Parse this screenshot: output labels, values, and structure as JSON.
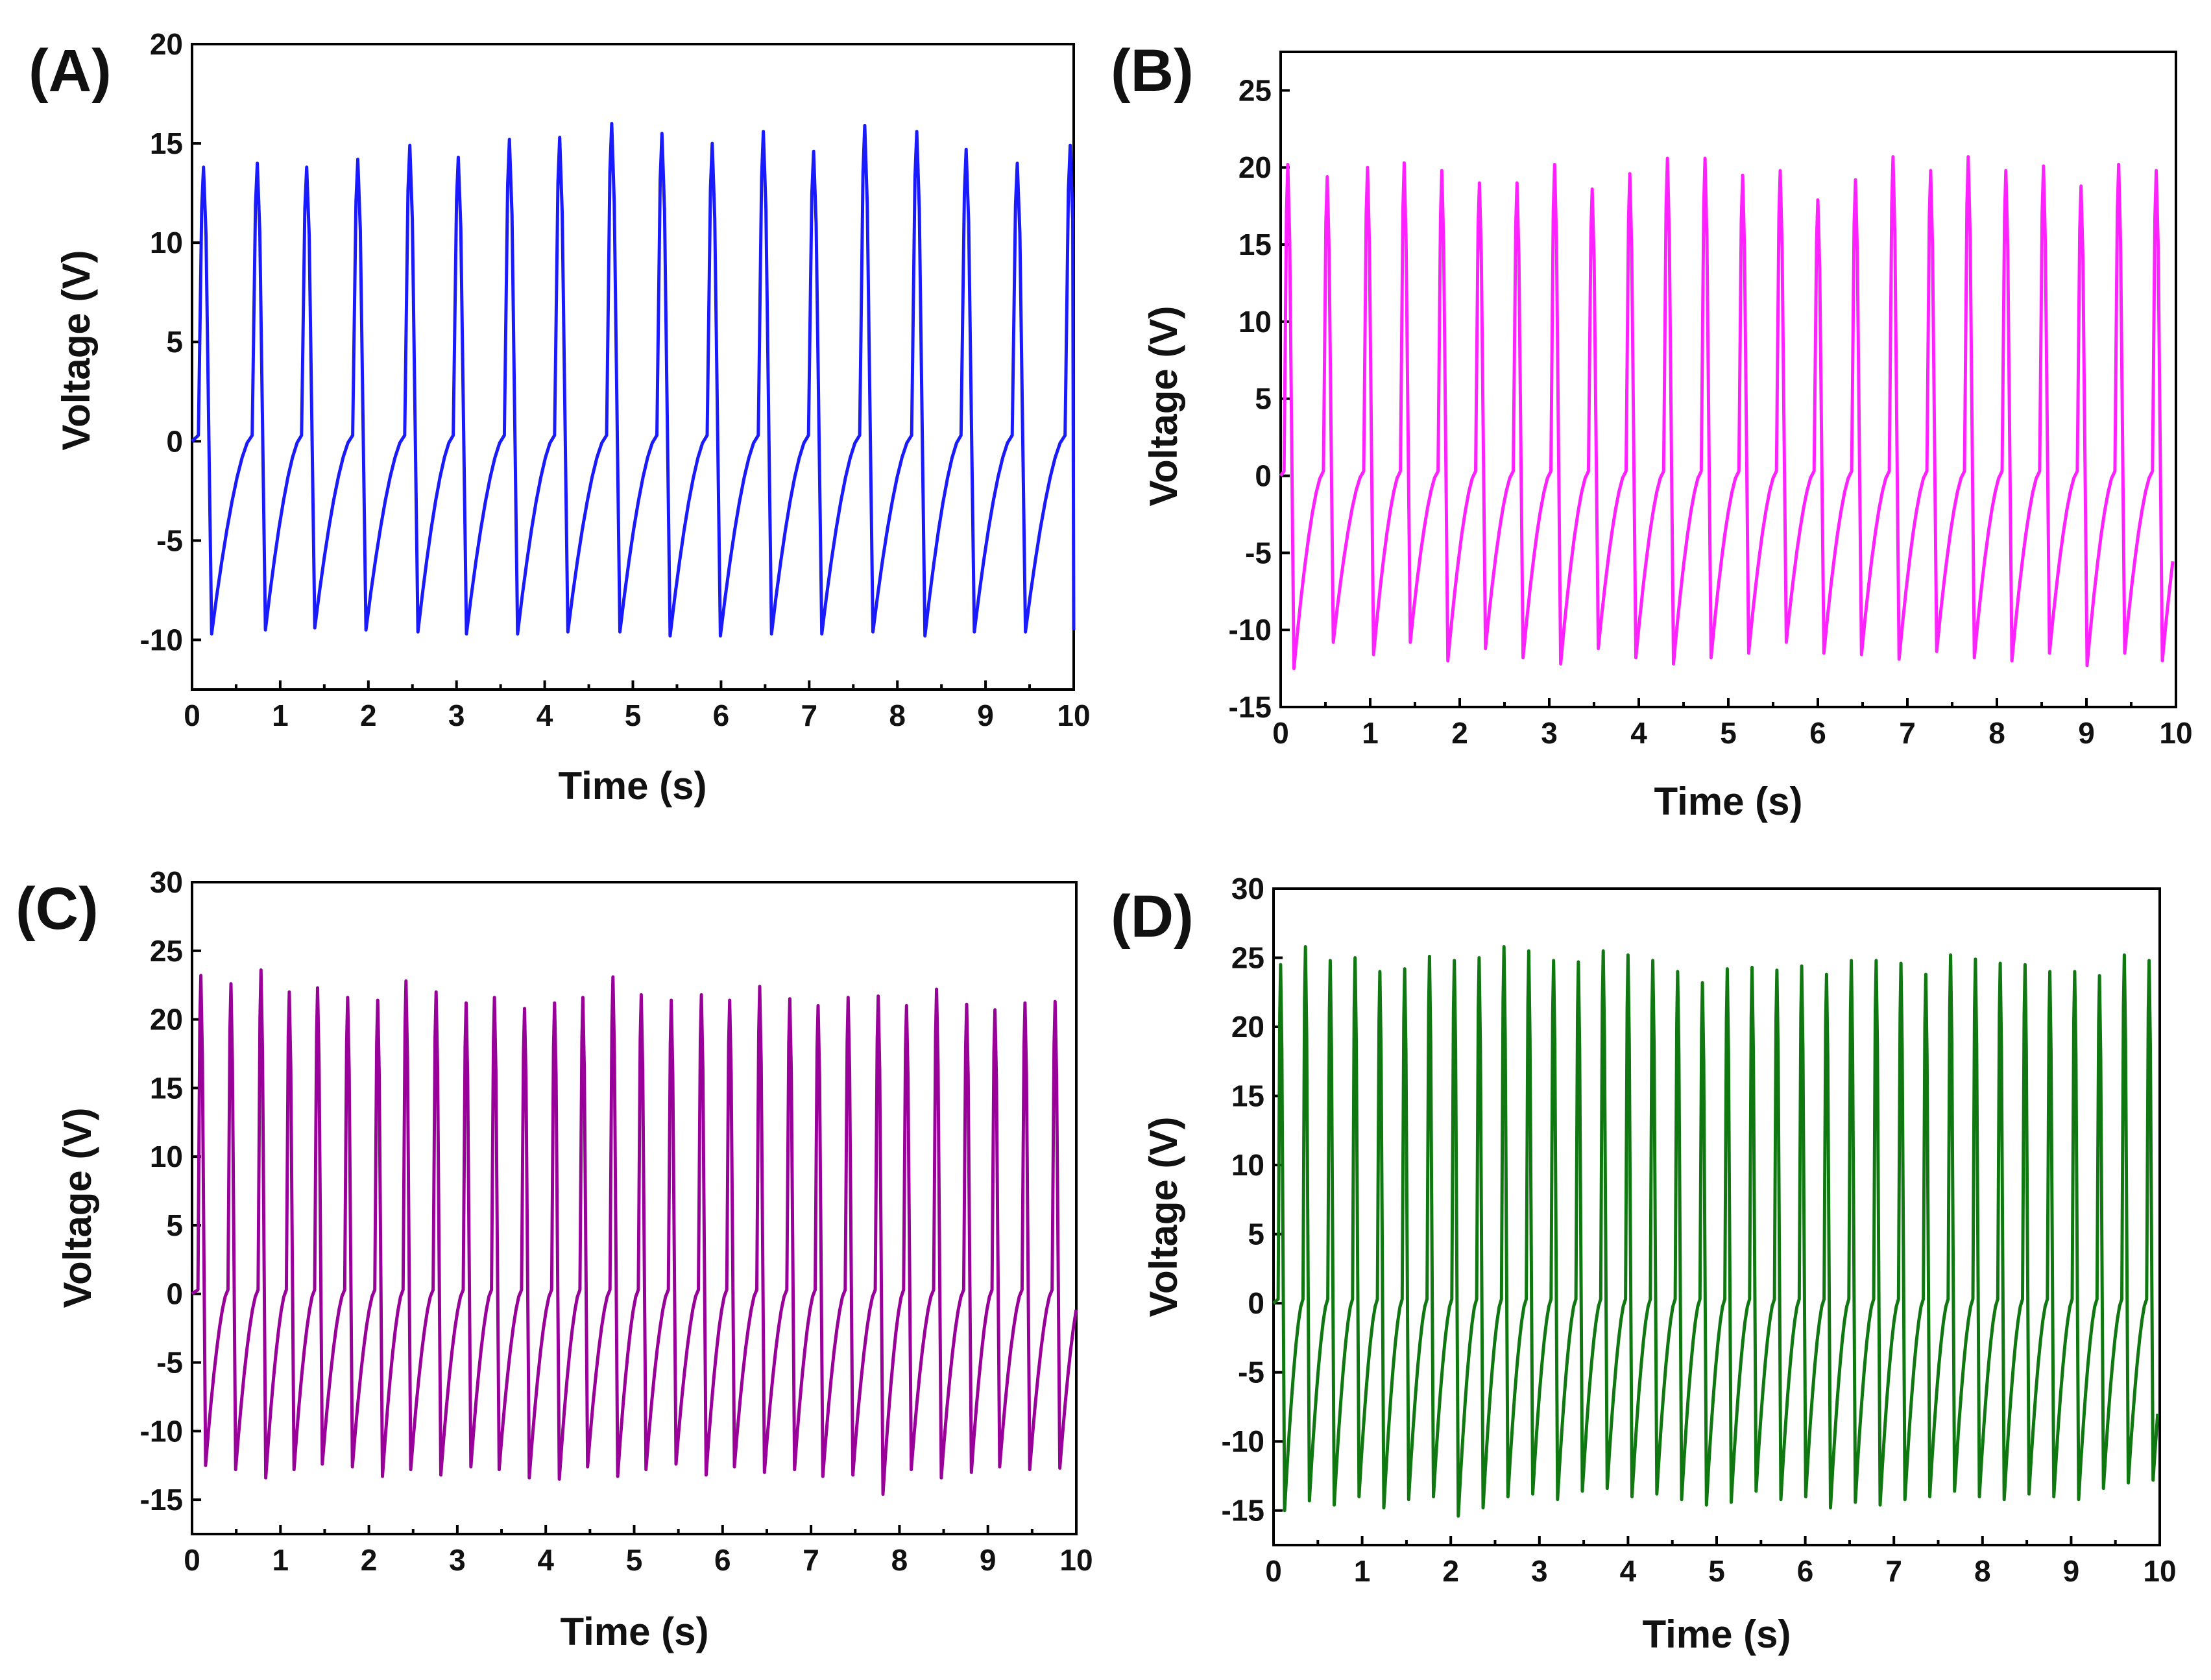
{
  "figure": {
    "panels": [
      "(A)",
      "(B)",
      "(C)",
      "(D)"
    ]
  },
  "chart_data": [
    {
      "panel": "(A)",
      "type": "line",
      "title": "",
      "xlabel": "Time (s)",
      "ylabel": "Voltage (V)",
      "xlim": [
        0,
        10
      ],
      "ylim": [
        -12.5,
        20
      ],
      "xticks": [
        0,
        1,
        2,
        3,
        4,
        5,
        6,
        7,
        8,
        9,
        10
      ],
      "yticks": [
        -10,
        -5,
        0,
        5,
        10,
        15,
        20
      ],
      "color": "#1a1aff",
      "series": [
        {
          "name": "Voltage",
          "peak_times": [
            0.13,
            0.74,
            1.3,
            1.88,
            2.47,
            3.02,
            3.6,
            4.17,
            4.76,
            5.33,
            5.9,
            6.48,
            7.05,
            7.63,
            8.22,
            8.78,
            9.36,
            9.96
          ],
          "peak_values": [
            13.8,
            14.0,
            13.8,
            14.2,
            14.9,
            14.3,
            15.2,
            15.3,
            16.0,
            15.5,
            15.0,
            15.6,
            14.6,
            15.9,
            15.6,
            14.7,
            14.0,
            14.9
          ],
          "trough_values": [
            -9.7,
            -9.5,
            -9.4,
            -9.5,
            -9.6,
            -9.7,
            -9.7,
            -9.6,
            -9.6,
            -9.8,
            -9.8,
            -9.7,
            -9.7,
            -9.6,
            -9.8,
            -9.6,
            -9.6,
            -9.5
          ]
        }
      ]
    },
    {
      "panel": "(B)",
      "type": "line",
      "title": "",
      "xlabel": "Time (s)",
      "ylabel": "Voltage (V)",
      "xlim": [
        0,
        10
      ],
      "ylim": [
        -15,
        27.5
      ],
      "xticks": [
        0,
        1,
        2,
        3,
        4,
        5,
        6,
        7,
        8,
        9,
        10
      ],
      "yticks": [
        -15,
        -10,
        -5,
        0,
        5,
        10,
        15,
        20,
        25
      ],
      "color": "#ff21ff",
      "series": [
        {
          "name": "Voltage",
          "peak_times": [
            0.08,
            0.52,
            0.97,
            1.38,
            1.8,
            2.22,
            2.64,
            3.06,
            3.48,
            3.9,
            4.32,
            4.74,
            5.16,
            5.58,
            6.0,
            6.42,
            6.84,
            7.26,
            7.68,
            8.1,
            8.52,
            8.94,
            9.36,
            9.78
          ],
          "peak_values": [
            20.2,
            19.4,
            20.0,
            20.3,
            19.8,
            19.0,
            19.0,
            20.2,
            18.6,
            19.6,
            20.6,
            20.6,
            19.5,
            19.8,
            17.9,
            19.2,
            20.7,
            19.8,
            20.7,
            19.8,
            20.1,
            18.8,
            20.2,
            19.8
          ],
          "trough_values": [
            -12.5,
            -10.8,
            -11.6,
            -10.8,
            -12.0,
            -11.2,
            -11.8,
            -12.2,
            -11.2,
            -11.8,
            -12.2,
            -11.8,
            -11.5,
            -10.8,
            -11.5,
            -11.6,
            -11.9,
            -11.4,
            -11.8,
            -12.0,
            -11.5,
            -12.3,
            -11.5,
            -12.0
          ]
        }
      ]
    },
    {
      "panel": "(C)",
      "type": "line",
      "title": "",
      "xlabel": "Time (s)",
      "ylabel": "Voltage (V)",
      "xlim": [
        0,
        10
      ],
      "ylim": [
        -17.5,
        30
      ],
      "xticks": [
        0,
        1,
        2,
        3,
        4,
        5,
        6,
        7,
        8,
        9,
        10
      ],
      "yticks": [
        -15,
        -10,
        -5,
        0,
        5,
        10,
        15,
        20,
        25,
        30
      ],
      "color": "#990099",
      "series": [
        {
          "name": "Voltage",
          "peak_times": [
            0.1,
            0.44,
            0.78,
            1.1,
            1.42,
            1.76,
            2.1,
            2.42,
            2.76,
            3.1,
            3.42,
            3.76,
            4.1,
            4.42,
            4.76,
            5.08,
            5.42,
            5.76,
            6.08,
            6.42,
            6.76,
            7.08,
            7.42,
            7.76,
            8.08,
            8.42,
            8.76,
            9.08,
            9.42,
            9.76
          ],
          "peak_values": [
            23.2,
            22.6,
            23.6,
            22.0,
            22.3,
            21.6,
            21.4,
            22.8,
            22.0,
            21.2,
            21.6,
            20.8,
            21.2,
            21.6,
            23.1,
            21.8,
            21.4,
            21.8,
            21.4,
            22.4,
            21.5,
            21.0,
            21.6,
            21.7,
            21.0,
            22.2,
            21.1,
            20.7,
            21.2,
            21.3
          ],
          "trough_values": [
            -12.5,
            -12.8,
            -13.4,
            -12.8,
            -12.4,
            -12.6,
            -13.3,
            -12.8,
            -13.2,
            -12.6,
            -12.8,
            -13.4,
            -13.5,
            -12.6,
            -13.3,
            -12.8,
            -12.4,
            -13.2,
            -12.6,
            -13.0,
            -12.8,
            -13.3,
            -13.2,
            -14.6,
            -12.8,
            -13.4,
            -13.0,
            -12.6,
            -12.8,
            -12.7
          ]
        }
      ]
    },
    {
      "panel": "(D)",
      "type": "line",
      "title": "",
      "xlabel": "Time (s)",
      "ylabel": "Voltage (V)",
      "xlim": [
        0,
        10
      ],
      "ylim": [
        -17.5,
        30
      ],
      "xticks": [
        0,
        1,
        2,
        3,
        4,
        5,
        6,
        7,
        8,
        9,
        10
      ],
      "yticks": [
        -15,
        -10,
        -5,
        0,
        5,
        10,
        15,
        20,
        25,
        30
      ],
      "color": "#107810",
      "series": [
        {
          "name": "Voltage",
          "peak_times": [
            0.08,
            0.36,
            0.64,
            0.92,
            1.2,
            1.48,
            1.76,
            2.04,
            2.32,
            2.6,
            2.88,
            3.16,
            3.44,
            3.72,
            4.0,
            4.28,
            4.56,
            4.84,
            5.12,
            5.4,
            5.68,
            5.96,
            6.24,
            6.52,
            6.8,
            7.08,
            7.36,
            7.64,
            7.92,
            8.2,
            8.48,
            8.76,
            9.04,
            9.32,
            9.6,
            9.88
          ],
          "peak_values": [
            24.5,
            25.8,
            24.8,
            25.0,
            24.0,
            24.2,
            25.1,
            24.8,
            25.0,
            25.8,
            25.5,
            24.8,
            24.7,
            25.5,
            25.2,
            24.8,
            24.0,
            23.2,
            24.2,
            24.3,
            24.1,
            24.4,
            23.8,
            24.8,
            24.8,
            24.6,
            23.8,
            25.2,
            24.9,
            24.6,
            24.5,
            24.0,
            24.0,
            23.7,
            25.2,
            24.8
          ],
          "trough_values": [
            -15.0,
            -14.3,
            -14.6,
            -14.0,
            -14.8,
            -14.2,
            -14.0,
            -15.4,
            -14.8,
            -14.0,
            -13.8,
            -14.2,
            -13.6,
            -13.4,
            -14.0,
            -13.8,
            -14.2,
            -14.6,
            -14.4,
            -13.6,
            -14.2,
            -14.0,
            -14.8,
            -14.4,
            -14.6,
            -14.2,
            -14.0,
            -13.6,
            -14.0,
            -14.2,
            -13.8,
            -14.0,
            -14.2,
            -13.4,
            -13.0,
            -12.8
          ]
        }
      ]
    }
  ]
}
